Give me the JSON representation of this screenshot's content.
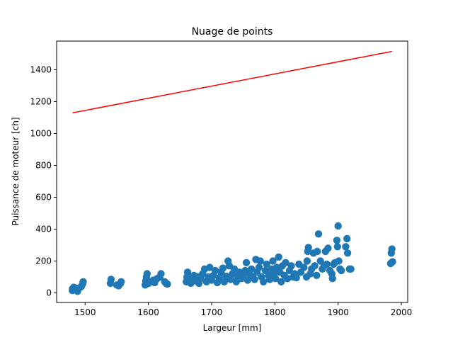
{
  "chart_data": {
    "type": "scatter",
    "title": "Nuage de points",
    "xlabel": "Largeur [mm]",
    "ylabel": "Puissance de moteur [ch]",
    "xlim": [
      1455,
      2010
    ],
    "ylim": [
      -60,
      1580
    ],
    "xticks": [
      1500,
      1600,
      1700,
      1800,
      1900,
      2000
    ],
    "yticks": [
      0,
      200,
      400,
      600,
      800,
      1000,
      1200,
      1400
    ],
    "grid": false,
    "colors": {
      "points": "#1f77b4",
      "line": "#ff0000"
    },
    "line": {
      "x": [
        1480,
        1985
      ],
      "y": [
        1130,
        1515
      ]
    },
    "points": [
      [
        1480,
        15
      ],
      [
        1480,
        25
      ],
      [
        1482,
        35
      ],
      [
        1484,
        20
      ],
      [
        1486,
        30
      ],
      [
        1488,
        10
      ],
      [
        1490,
        28
      ],
      [
        1494,
        40
      ],
      [
        1496,
        55
      ],
      [
        1497,
        70
      ],
      [
        1540,
        60
      ],
      [
        1541,
        85
      ],
      [
        1550,
        50
      ],
      [
        1553,
        45
      ],
      [
        1556,
        60
      ],
      [
        1557,
        70
      ],
      [
        1595,
        50
      ],
      [
        1596,
        75
      ],
      [
        1597,
        100
      ],
      [
        1598,
        120
      ],
      [
        1600,
        60
      ],
      [
        1604,
        70
      ],
      [
        1608,
        80
      ],
      [
        1610,
        65
      ],
      [
        1614,
        90
      ],
      [
        1618,
        100
      ],
      [
        1620,
        120
      ],
      [
        1626,
        70
      ],
      [
        1628,
        60
      ],
      [
        1630,
        55
      ],
      [
        1660,
        70
      ],
      [
        1661,
        100
      ],
      [
        1662,
        130
      ],
      [
        1664,
        80
      ],
      [
        1667,
        60
      ],
      [
        1670,
        90
      ],
      [
        1672,
        110
      ],
      [
        1675,
        75
      ],
      [
        1678,
        100
      ],
      [
        1680,
        60
      ],
      [
        1683,
        90
      ],
      [
        1686,
        120
      ],
      [
        1689,
        150
      ],
      [
        1692,
        70
      ],
      [
        1695,
        100
      ],
      [
        1697,
        160
      ],
      [
        1700,
        80
      ],
      [
        1703,
        110
      ],
      [
        1706,
        140
      ],
      [
        1709,
        65
      ],
      [
        1712,
        95
      ],
      [
        1715,
        130
      ],
      [
        1718,
        155
      ],
      [
        1720,
        70
      ],
      [
        1723,
        105
      ],
      [
        1726,
        200
      ],
      [
        1728,
        170
      ],
      [
        1730,
        85
      ],
      [
        1733,
        120
      ],
      [
        1736,
        150
      ],
      [
        1739,
        70
      ],
      [
        1741,
        100
      ],
      [
        1744,
        130
      ],
      [
        1747,
        90
      ],
      [
        1750,
        110
      ],
      [
        1753,
        140
      ],
      [
        1755,
        190
      ],
      [
        1757,
        80
      ],
      [
        1760,
        120
      ],
      [
        1763,
        150
      ],
      [
        1765,
        100
      ],
      [
        1768,
        85
      ],
      [
        1770,
        210
      ],
      [
        1772,
        130
      ],
      [
        1775,
        160
      ],
      [
        1777,
        200
      ],
      [
        1779,
        100
      ],
      [
        1782,
        70
      ],
      [
        1785,
        140
      ],
      [
        1787,
        180
      ],
      [
        1790,
        110
      ],
      [
        1792,
        85
      ],
      [
        1795,
        150
      ],
      [
        1797,
        200
      ],
      [
        1799,
        120
      ],
      [
        1801,
        90
      ],
      [
        1803,
        160
      ],
      [
        1806,
        225
      ],
      [
        1808,
        130
      ],
      [
        1810,
        70
      ],
      [
        1812,
        170
      ],
      [
        1815,
        110
      ],
      [
        1817,
        190
      ],
      [
        1820,
        90
      ],
      [
        1823,
        140
      ],
      [
        1826,
        170
      ],
      [
        1829,
        100
      ],
      [
        1831,
        120
      ],
      [
        1834,
        95
      ],
      [
        1838,
        180
      ],
      [
        1841,
        130
      ],
      [
        1846,
        160
      ],
      [
        1850,
        100
      ],
      [
        1851,
        200
      ],
      [
        1852,
        260
      ],
      [
        1853,
        285
      ],
      [
        1856,
        120
      ],
      [
        1858,
        150
      ],
      [
        1861,
        250
      ],
      [
        1863,
        170
      ],
      [
        1866,
        110
      ],
      [
        1867,
        260
      ],
      [
        1869,
        370
      ],
      [
        1872,
        200
      ],
      [
        1875,
        150
      ],
      [
        1878,
        170
      ],
      [
        1880,
        260
      ],
      [
        1882,
        180
      ],
      [
        1884,
        280
      ],
      [
        1887,
        140
      ],
      [
        1890,
        120
      ],
      [
        1891,
        90
      ],
      [
        1893,
        180
      ],
      [
        1895,
        190
      ],
      [
        1898,
        330
      ],
      [
        1899,
        290
      ],
      [
        1900,
        420
      ],
      [
        1901,
        200
      ],
      [
        1903,
        150
      ],
      [
        1905,
        140
      ],
      [
        1912,
        290
      ],
      [
        1914,
        340
      ],
      [
        1915,
        250
      ],
      [
        1918,
        150
      ],
      [
        1920,
        150
      ],
      [
        1983,
        185
      ],
      [
        1984,
        250
      ],
      [
        1985,
        275
      ],
      [
        1986,
        195
      ]
    ]
  }
}
